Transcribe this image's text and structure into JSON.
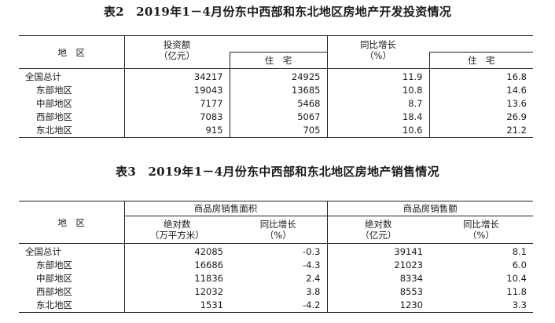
{
  "table2": {
    "title": "表2　2019年1－4月份东中西部和东北地区房地产开发投资情况",
    "head": {
      "region": "地　区",
      "invest_line1": "投资额",
      "invest_line2": "（亿元）",
      "housing": "住　宅",
      "growth_line1": "同比增长",
      "growth_line2": "（%）",
      "growth_housing": "住　宅"
    },
    "rows": [
      {
        "region": "全国总计",
        "invest": "34217",
        "invest_housing": "24925",
        "growth": "11.9",
        "growth_housing": "16.8"
      },
      {
        "region": "东部地区",
        "invest": "19043",
        "invest_housing": "13685",
        "growth": "10.8",
        "growth_housing": "14.6"
      },
      {
        "region": "中部地区",
        "invest": "7177",
        "invest_housing": "5468",
        "growth": "8.7",
        "growth_housing": "13.6"
      },
      {
        "region": "西部地区",
        "invest": "7083",
        "invest_housing": "5067",
        "growth": "18.4",
        "growth_housing": "26.9"
      },
      {
        "region": "东北地区",
        "invest": "915",
        "invest_housing": "705",
        "growth": "10.6",
        "growth_housing": "21.2"
      }
    ]
  },
  "table3": {
    "title": "表3　2019年1－4月份东中西部和东北地区房地产销售情况",
    "head": {
      "region": "地　区",
      "area_group": "商品房销售面积",
      "sales_group": "商品房销售额",
      "abs_line1": "绝对数",
      "area_unit": "（万平方米）",
      "growth_line1": "同比增长",
      "growth_unit": "（%）",
      "sales_abs_line1": "绝对数",
      "sales_unit": "（亿元）",
      "sales_growth_line1": "同比增长",
      "sales_growth_unit": "（%）"
    },
    "rows": [
      {
        "region": "全国总计",
        "area": "42085",
        "area_growth": "-0.3",
        "sales": "39141",
        "sales_growth": "8.1"
      },
      {
        "region": "东部地区",
        "area": "16686",
        "area_growth": "-4.3",
        "sales": "21023",
        "sales_growth": "6.0"
      },
      {
        "region": "中部地区",
        "area": "11836",
        "area_growth": "2.4",
        "sales": "8334",
        "sales_growth": "10.4"
      },
      {
        "region": "西部地区",
        "area": "12032",
        "area_growth": "3.8",
        "sales": "8553",
        "sales_growth": "11.8"
      },
      {
        "region": "东北地区",
        "area": "1531",
        "area_growth": "-4.2",
        "sales": "1230",
        "sales_growth": "3.3"
      }
    ]
  }
}
